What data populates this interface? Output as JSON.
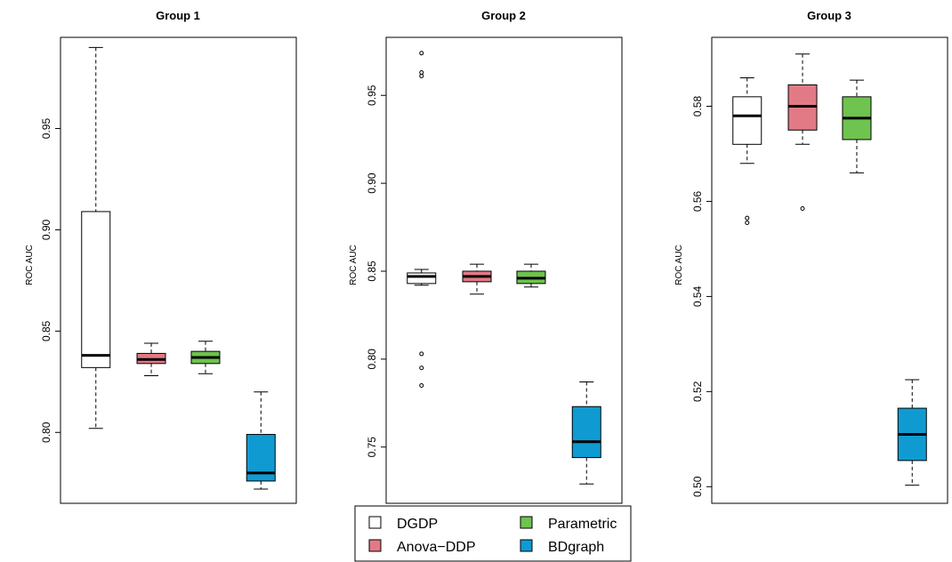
{
  "chart_data": [
    {
      "type": "boxplot",
      "title": "Group 1",
      "ylabel": "ROC AUC",
      "ylim": [
        0.765,
        0.995
      ],
      "yticks": [
        0.8,
        0.85,
        0.9,
        0.95
      ],
      "ytick_labels": [
        "0.80",
        "0.85",
        "0.90",
        "0.95"
      ],
      "series": [
        {
          "name": "DGDP",
          "whisker_low": 0.802,
          "q1": 0.832,
          "median": 0.838,
          "q3": 0.909,
          "whisker_high": 0.99,
          "outliers": []
        },
        {
          "name": "Anova-DDP",
          "whisker_low": 0.828,
          "q1": 0.834,
          "median": 0.836,
          "q3": 0.839,
          "whisker_high": 0.844,
          "outliers": []
        },
        {
          "name": "Parametric",
          "whisker_low": 0.829,
          "q1": 0.834,
          "median": 0.837,
          "q3": 0.84,
          "whisker_high": 0.845,
          "outliers": []
        },
        {
          "name": "BDgraph",
          "whisker_low": 0.772,
          "q1": 0.776,
          "median": 0.78,
          "q3": 0.799,
          "whisker_high": 0.82,
          "outliers": []
        }
      ]
    },
    {
      "type": "boxplot",
      "title": "Group 2",
      "ylabel": "ROC AUC",
      "ylim": [
        0.718,
        0.983
      ],
      "yticks": [
        0.75,
        0.8,
        0.85,
        0.9,
        0.95
      ],
      "ytick_labels": [
        "0.75",
        "0.80",
        "0.85",
        "0.90",
        "0.95"
      ],
      "series": [
        {
          "name": "DGDP",
          "whisker_low": 0.842,
          "q1": 0.843,
          "median": 0.847,
          "q3": 0.849,
          "whisker_high": 0.851,
          "outliers": [
            0.974,
            0.963,
            0.961,
            0.803,
            0.795,
            0.785
          ]
        },
        {
          "name": "Anova-DDP",
          "whisker_low": 0.837,
          "q1": 0.844,
          "median": 0.847,
          "q3": 0.85,
          "whisker_high": 0.854,
          "outliers": []
        },
        {
          "name": "Parametric",
          "whisker_low": 0.841,
          "q1": 0.843,
          "median": 0.846,
          "q3": 0.85,
          "whisker_high": 0.854,
          "outliers": []
        },
        {
          "name": "BDgraph",
          "whisker_low": 0.729,
          "q1": 0.744,
          "median": 0.753,
          "q3": 0.773,
          "whisker_high": 0.787,
          "outliers": []
        }
      ]
    },
    {
      "type": "boxplot",
      "title": "Group 3",
      "ylabel": "ROC AUC",
      "ylim": [
        0.4965,
        0.5945
      ],
      "yticks": [
        0.5,
        0.52,
        0.54,
        0.56,
        0.58
      ],
      "ytick_labels": [
        "0.50",
        "0.52",
        "0.54",
        "0.56",
        "0.58"
      ],
      "series": [
        {
          "name": "DGDP",
          "whisker_low": 0.568,
          "q1": 0.572,
          "median": 0.578,
          "q3": 0.582,
          "whisker_high": 0.586,
          "outliers": [
            0.5565,
            0.5555
          ]
        },
        {
          "name": "Anova-DDP",
          "whisker_low": 0.572,
          "q1": 0.575,
          "median": 0.58,
          "q3": 0.5845,
          "whisker_high": 0.591,
          "outliers": [
            0.5585
          ]
        },
        {
          "name": "Parametric",
          "whisker_low": 0.566,
          "q1": 0.573,
          "median": 0.5775,
          "q3": 0.582,
          "whisker_high": 0.5855,
          "outliers": []
        },
        {
          "name": "BDgraph",
          "whisker_low": 0.5003,
          "q1": 0.5055,
          "median": 0.511,
          "q3": 0.5165,
          "whisker_high": 0.5225,
          "outliers": []
        }
      ]
    }
  ],
  "legend": {
    "items": [
      {
        "label": "DGDP",
        "color": "#ffffff"
      },
      {
        "label": "Parametric",
        "color": "#6ec44e"
      },
      {
        "label": "Anova−DDP",
        "color": "#e27a86"
      },
      {
        "label": "BDgraph",
        "color": "#0f9bd1"
      }
    ]
  },
  "colors": {
    "DGDP": "#ffffff",
    "Anova-DDP": "#e27a86",
    "Parametric": "#6ec44e",
    "BDgraph": "#0f9bd1"
  }
}
